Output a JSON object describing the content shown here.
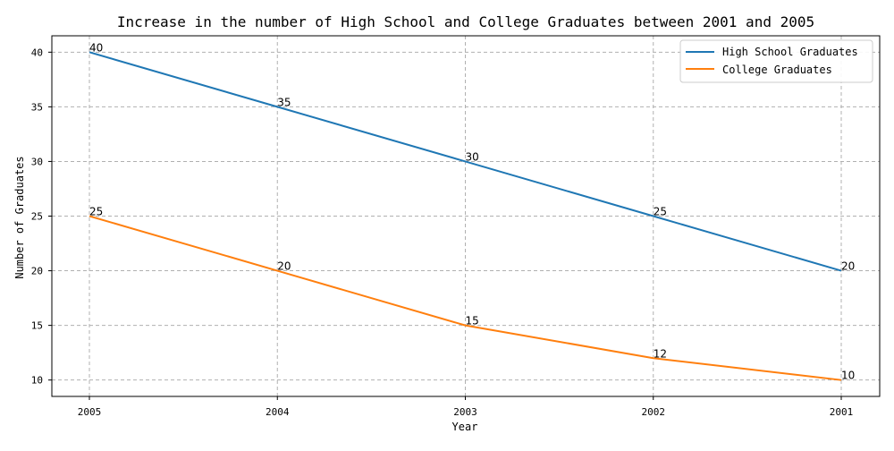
{
  "chart_data": {
    "type": "line",
    "title": "Increase in the number of High School and College Graduates between 2001 and 2005",
    "xlabel": "Year",
    "ylabel": "Number of Graduates",
    "categories": [
      "2005",
      "2004",
      "2003",
      "2002",
      "2001"
    ],
    "ylim": [
      8.5,
      41.5
    ],
    "yticks": [
      10,
      15,
      20,
      25,
      30,
      35,
      40
    ],
    "grid": true,
    "legend_position": "top-right",
    "series": [
      {
        "name": "High School Graduates",
        "color": "#1f77b4",
        "values": [
          40,
          35,
          30,
          25,
          20
        ]
      },
      {
        "name": "College Graduates",
        "color": "#ff7f0e",
        "values": [
          25,
          20,
          15,
          12,
          10
        ]
      }
    ]
  }
}
